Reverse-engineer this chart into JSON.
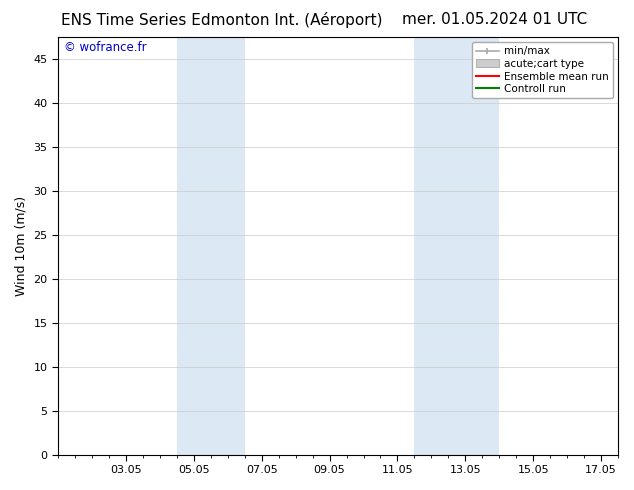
{
  "title_left": "ENS Time Series Edmonton Int. (Aéroport)",
  "title_right": "mer. 01.05.2024 01 UTC",
  "ylabel": "Wind 10m (m/s)",
  "ylim": [
    0,
    47.5
  ],
  "yticks": [
    0,
    5,
    10,
    15,
    20,
    25,
    30,
    35,
    40,
    45
  ],
  "xtick_labels": [
    "03.05",
    "05.05",
    "07.05",
    "09.05",
    "11.05",
    "13.05",
    "15.05",
    "17.05"
  ],
  "xtick_positions": [
    2,
    4,
    6,
    8,
    10,
    12,
    14,
    16
  ],
  "xlim": [
    0,
    16.5
  ],
  "shaded_regions": [
    {
      "start": 3.5,
      "end": 5.5,
      "color": "#dce9f5"
    },
    {
      "start": 10.5,
      "end": 13.0,
      "color": "#dce9f5"
    }
  ],
  "watermark_text": "© wofrance.fr",
  "watermark_color": "#0000cc",
  "background_color": "#ffffff",
  "legend_minmax_color": "#aaaaaa",
  "legend_acute_color": "#cccccc",
  "legend_ens_color": "#ff0000",
  "legend_ctrl_color": "#008000",
  "title_fontsize": 11,
  "ylabel_fontsize": 9,
  "tick_fontsize": 8,
  "legend_fontsize": 7.5
}
